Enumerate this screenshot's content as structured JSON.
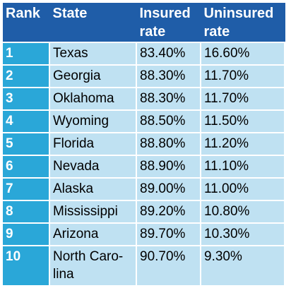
{
  "headers": {
    "rank": "Rank",
    "state": "State",
    "insured": "Insured rate",
    "uninsured": "Uninsured rate"
  },
  "rows": [
    {
      "rank": "1",
      "state": "Texas",
      "insured": "83.40%",
      "uninsured": "16.60%"
    },
    {
      "rank": "2",
      "state": "Georgia",
      "insured": "88.30%",
      "uninsured": "11.70%"
    },
    {
      "rank": "3",
      "state": "Oklahoma",
      "insured": "88.30%",
      "uninsured": "11.70%"
    },
    {
      "rank": "4",
      "state": "Wyoming",
      "insured": "88.50%",
      "uninsured": "11.50%"
    },
    {
      "rank": "5",
      "state": "Florida",
      "insured": "88.80%",
      "uninsured": "11.20%"
    },
    {
      "rank": "6",
      "state": "Nevada",
      "insured": "88.90%",
      "uninsured": "11.10%"
    },
    {
      "rank": "7",
      "state": "Alaska",
      "insured": "89.00%",
      "uninsured": "11.00%"
    },
    {
      "rank": "8",
      "state": "Mississippi",
      "insured": "89.20%",
      "uninsured": "10.80%"
    },
    {
      "rank": "9",
      "state": "Arizona",
      "insured": "89.70%",
      "uninsured": "10.30%"
    },
    {
      "rank": "10",
      "state": "North Caro-lina",
      "insured": "90.70%",
      "uninsured": "9.30%"
    }
  ],
  "colors": {
    "header_bg": "#1f5da8",
    "rank_bg": "#2aa7d8",
    "cell_bg": "#bfe1f2"
  }
}
